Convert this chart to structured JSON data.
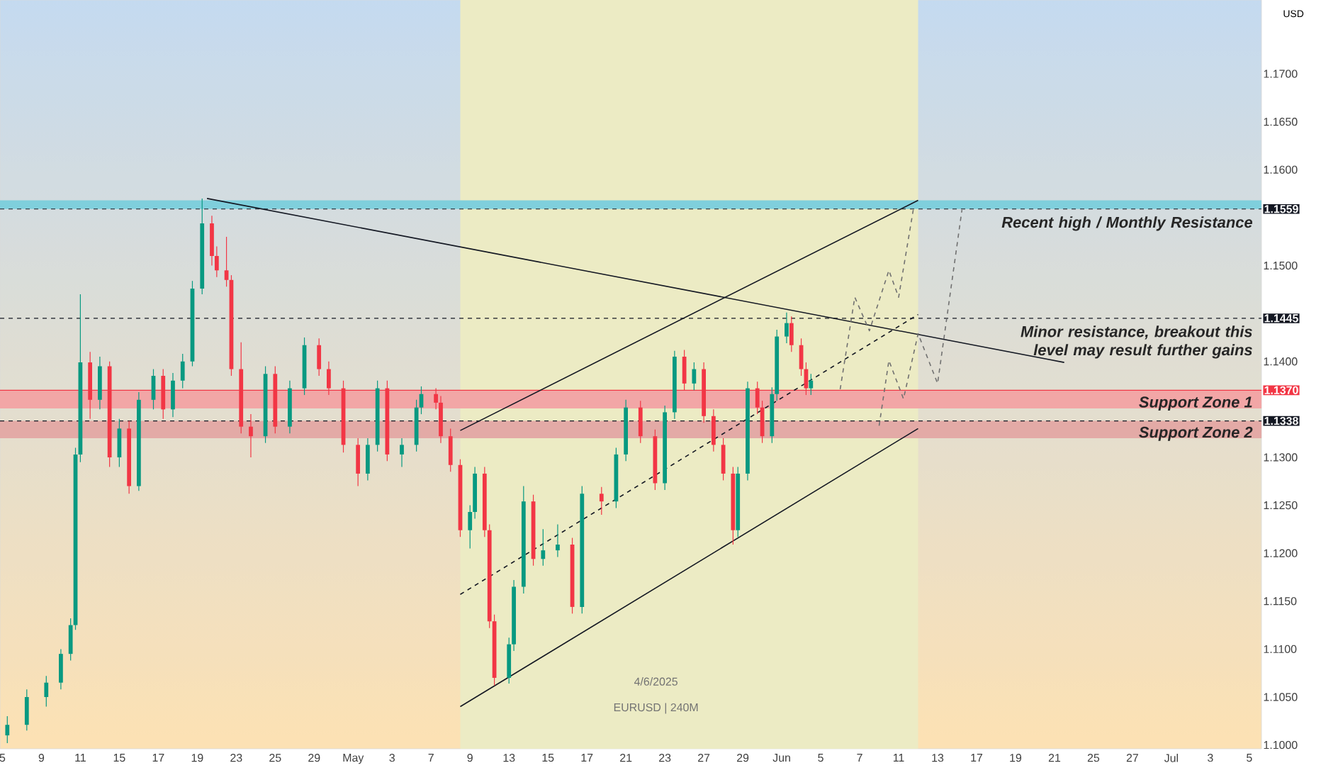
{
  "chart_data": {
    "type": "candlestick",
    "ylabel": "USD",
    "annotations": [
      "4/6/2025",
      "EURUSD | 240M"
    ],
    "categories": [
      "5",
      null,
      null,
      null,
      null,
      null,
      null,
      null,
      "9",
      null,
      null,
      null,
      null,
      null,
      null,
      null,
      "11",
      null,
      null,
      null,
      null,
      null,
      null,
      null,
      "15",
      null,
      null,
      null,
      null,
      null,
      null,
      null,
      "17",
      null,
      null,
      null,
      null,
      null,
      null,
      null,
      "19",
      null,
      null,
      null,
      null,
      null,
      null,
      null,
      "23",
      null,
      null,
      null,
      null,
      null,
      null,
      null,
      "25",
      null,
      null,
      null,
      null,
      null,
      null,
      null,
      "29",
      null,
      null,
      null,
      null,
      null,
      null,
      null,
      "May",
      null,
      null,
      null,
      null,
      null,
      null,
      null,
      "3",
      null,
      null,
      null,
      null,
      null,
      null,
      null,
      "7",
      null,
      null,
      null,
      null,
      null,
      null,
      null,
      "9",
      null,
      null,
      null,
      null,
      null,
      null,
      null,
      "13",
      null,
      null,
      null,
      null,
      null,
      null,
      null,
      "15",
      null,
      null,
      null,
      null,
      null,
      null,
      null,
      "17",
      null,
      null,
      null,
      null,
      null,
      null,
      null,
      "21",
      null,
      null,
      null,
      null,
      null,
      null,
      null,
      "23",
      null,
      null,
      null,
      null,
      null,
      null,
      null,
      "27",
      null,
      null,
      null,
      null,
      null,
      null,
      null,
      "29",
      null,
      null,
      null,
      null,
      null,
      null,
      null,
      "Jun",
      null,
      null,
      null,
      null,
      null,
      null,
      null,
      "5",
      null,
      null,
      null,
      null,
      null,
      null,
      null,
      "7",
      null,
      null,
      null,
      null,
      null,
      null,
      null,
      "11",
      null,
      null,
      null,
      null,
      null,
      null,
      null,
      "13",
      null,
      null,
      null,
      null,
      null,
      null,
      null,
      "17",
      null,
      null,
      null,
      null,
      null,
      null,
      null,
      "19",
      null,
      null,
      null,
      null,
      null,
      null,
      null,
      "21",
      null,
      null,
      null,
      null,
      null,
      null,
      null,
      "25",
      null,
      null,
      null,
      null,
      null,
      null,
      null,
      "27",
      null,
      null,
      null,
      null,
      null,
      null,
      null,
      "Jul",
      null,
      null,
      null,
      null,
      null,
      null,
      null,
      "3",
      null,
      null,
      null,
      null,
      null,
      null,
      null,
      "5",
      null,
      null
    ],
    "ohlc": [
      null,
      [
        1.101,
        1.103,
        1.1002,
        1.1021
      ],
      null,
      null,
      null,
      [
        1.1021,
        1.1058,
        1.1015,
        1.105
      ],
      null,
      null,
      null,
      [
        1.105,
        1.1072,
        1.104,
        1.1065
      ],
      null,
      null,
      [
        1.1065,
        1.11,
        1.1058,
        1.1095
      ],
      null,
      [
        1.1095,
        1.1132,
        1.1088,
        1.1125
      ],
      [
        1.1125,
        1.131,
        1.112,
        1.1303
      ],
      [
        1.1303,
        1.147,
        1.1295,
        1.1399
      ],
      null,
      [
        1.1399,
        1.141,
        1.134,
        1.136
      ],
      null,
      [
        1.136,
        1.1405,
        1.135,
        1.1395
      ],
      null,
      [
        1.1395,
        1.14,
        1.129,
        1.13
      ],
      null,
      [
        1.13,
        1.134,
        1.129,
        1.133
      ],
      null,
      [
        1.133,
        1.1338,
        1.1262,
        1.127
      ],
      null,
      [
        1.127,
        1.1368,
        1.1265,
        1.136
      ],
      null,
      null,
      [
        1.136,
        1.1392,
        1.135,
        1.1385
      ],
      null,
      [
        1.1385,
        1.1392,
        1.134,
        1.135
      ],
      null,
      [
        1.135,
        1.1388,
        1.1342,
        1.138
      ],
      null,
      [
        1.138,
        1.1408,
        1.1372,
        1.14
      ],
      null,
      [
        1.14,
        1.1484,
        1.1395,
        1.1476
      ],
      null,
      [
        1.1476,
        1.157,
        1.147,
        1.1544
      ],
      null,
      [
        1.1544,
        1.1552,
        1.15,
        1.151
      ],
      [
        1.151,
        1.152,
        1.1488,
        1.1495
      ],
      null,
      [
        1.1495,
        1.153,
        1.1478,
        1.1485
      ],
      [
        1.1485,
        1.149,
        1.1385,
        1.1392
      ],
      null,
      [
        1.1392,
        1.142,
        1.1325,
        1.1332
      ],
      null,
      [
        1.1332,
        1.1345,
        1.13,
        1.1322
      ],
      null,
      null,
      [
        1.1322,
        1.1395,
        1.1315,
        1.1387
      ],
      null,
      [
        1.1387,
        1.1395,
        1.1325,
        1.1332
      ],
      null,
      null,
      [
        1.1332,
        1.138,
        1.1325,
        1.1372
      ],
      null,
      null,
      [
        1.1372,
        1.1425,
        1.1365,
        1.1417
      ],
      null,
      null,
      [
        1.1417,
        1.1424,
        1.1385,
        1.1392
      ],
      null,
      [
        1.1392,
        1.14,
        1.1365,
        1.1372
      ],
      null,
      null,
      [
        1.1372,
        1.138,
        1.1305,
        1.1313
      ],
      null,
      null,
      [
        1.1313,
        1.132,
        1.127,
        1.1283
      ],
      null,
      [
        1.1283,
        1.132,
        1.1276,
        1.1313
      ],
      null,
      [
        1.1313,
        1.138,
        1.1306,
        1.1372
      ],
      null,
      [
        1.1372,
        1.138,
        1.1296,
        1.1303
      ],
      null,
      null,
      [
        1.1303,
        1.132,
        1.129,
        1.1313
      ],
      null,
      null,
      [
        1.1313,
        1.136,
        1.1306,
        1.1352
      ],
      [
        1.1352,
        1.1374,
        1.1345,
        1.1366
      ],
      null,
      null,
      [
        1.1366,
        1.1372,
        1.135,
        1.1357
      ],
      [
        1.1357,
        1.1364,
        1.1315,
        1.1322
      ],
      null,
      [
        1.1322,
        1.133,
        1.1285,
        1.1292
      ],
      null,
      [
        1.1292,
        1.1298,
        1.1217,
        1.1224
      ],
      null,
      [
        1.1224,
        1.125,
        1.1205,
        1.1243
      ],
      [
        1.1243,
        1.129,
        1.1236,
        1.1283
      ],
      null,
      [
        1.1283,
        1.129,
        1.1217,
        1.1224
      ],
      [
        1.1224,
        1.123,
        1.1122,
        1.1129
      ],
      [
        1.1129,
        1.1136,
        1.1062,
        1.107
      ],
      null,
      null,
      [
        1.107,
        1.1112,
        1.1064,
        1.1105
      ],
      [
        1.1105,
        1.1172,
        1.1098,
        1.1165
      ],
      null,
      [
        1.1165,
        1.127,
        1.1158,
        1.1254
      ],
      null,
      [
        1.1254,
        1.1261,
        1.1187,
        1.1194
      ],
      null,
      [
        1.1194,
        1.1225,
        1.1187,
        1.1203
      ],
      null,
      null,
      [
        1.1203,
        1.123,
        1.1196,
        1.1209
      ],
      null,
      null,
      [
        1.1209,
        1.1216,
        1.1137,
        1.1144
      ],
      null,
      [
        1.1144,
        1.127,
        1.1137,
        1.1262
      ],
      null,
      null,
      null,
      [
        1.1262,
        1.1269,
        1.124,
        1.1254
      ],
      null,
      null,
      [
        1.1254,
        1.131,
        1.1247,
        1.1303
      ],
      null,
      [
        1.1303,
        1.136,
        1.1296,
        1.1352
      ],
      null,
      null,
      [
        1.1352,
        1.1359,
        1.1315,
        1.1322
      ],
      null,
      null,
      [
        1.1322,
        1.1329,
        1.1266,
        1.1273
      ],
      null,
      [
        1.1273,
        1.1354,
        1.1266,
        1.1347
      ],
      null,
      [
        1.1347,
        1.1411,
        1.134,
        1.1405
      ],
      null,
      [
        1.1405,
        1.1412,
        1.137,
        1.1377
      ],
      null,
      [
        1.1377,
        1.1399,
        1.137,
        1.1392
      ],
      null,
      [
        1.1392,
        1.1399,
        1.1336,
        1.1343
      ],
      null,
      [
        1.1343,
        1.135,
        1.1306,
        1.1313
      ],
      null,
      [
        1.1313,
        1.132,
        1.1276,
        1.1283
      ],
      null,
      [
        1.1283,
        1.129,
        1.1209,
        1.1224
      ],
      [
        1.1224,
        1.129,
        1.1217,
        1.1283
      ],
      null,
      [
        1.1283,
        1.1379,
        1.1276,
        1.1372
      ],
      null,
      [
        1.1372,
        1.1379,
        1.1345,
        1.1352
      ],
      [
        1.1352,
        1.1359,
        1.1315,
        1.1322
      ],
      null,
      [
        1.1322,
        1.1373,
        1.1315,
        1.1366
      ],
      [
        1.1366,
        1.1433,
        1.1359,
        1.1426
      ],
      null,
      [
        1.1426,
        1.1451,
        1.1419,
        1.144
      ],
      [
        1.144,
        1.1447,
        1.141,
        1.1417
      ],
      null,
      [
        1.1417,
        1.1424,
        1.1385,
        1.1392
      ],
      [
        1.1392,
        1.1399,
        1.1365,
        1.1372
      ],
      [
        1.1372,
        1.1387,
        1.1365,
        1.138
      ],
      null,
      null,
      null,
      null,
      null,
      null,
      null,
      null,
      null,
      null,
      null,
      null,
      null,
      null,
      null,
      null,
      null,
      null,
      null,
      null,
      null,
      null,
      null,
      null,
      null,
      null,
      null,
      null,
      null,
      null,
      null,
      null,
      null,
      null,
      null,
      null,
      null,
      null,
      null,
      null,
      null,
      null,
      null,
      null,
      null,
      null,
      null,
      null,
      null,
      null,
      null,
      null,
      null,
      null,
      null,
      null,
      null,
      null,
      null,
      null,
      null,
      null,
      null,
      null,
      null,
      null,
      null,
      null,
      null,
      null,
      null,
      null,
      null,
      null,
      null,
      null,
      null,
      null,
      null,
      null,
      null,
      null,
      null,
      null,
      null,
      null,
      null,
      null,
      null,
      null,
      null,
      null
    ],
    "series": [
      {
        "type": "line",
        "color": "#131722",
        "line_style": "solid",
        "values": [
          null,
          null,
          null,
          null,
          null,
          null,
          null,
          null,
          null,
          null,
          null,
          null,
          null,
          null,
          null,
          null,
          null,
          null,
          null,
          null,
          null,
          null,
          null,
          null,
          null,
          null,
          null,
          null,
          null,
          null,
          null,
          null,
          null,
          null,
          null,
          null,
          null,
          null,
          null,
          null,
          null,
          null,
          1.157,
          null,
          null,
          null,
          null,
          null,
          null,
          null,
          null,
          null,
          null,
          null,
          null,
          null,
          null,
          null,
          null,
          null,
          null,
          null,
          null,
          null,
          null,
          null,
          null,
          null,
          null,
          null,
          null,
          null,
          null,
          null,
          null,
          null,
          null,
          null,
          null,
          null,
          null,
          null,
          null,
          null,
          null,
          null,
          null,
          null,
          null,
          null,
          null,
          null,
          null,
          null,
          null,
          null,
          null,
          null,
          null,
          null,
          null,
          null,
          null,
          null,
          null,
          null,
          null,
          null,
          null,
          null,
          null,
          null,
          null,
          null,
          null,
          null,
          null,
          null,
          null,
          null,
          null,
          null,
          null,
          null,
          null,
          null,
          null,
          null,
          null,
          null,
          null,
          null,
          null,
          null,
          null,
          null,
          null,
          null,
          null,
          null,
          null,
          null,
          null,
          null,
          null,
          null,
          null,
          null,
          null,
          null,
          null,
          null,
          null,
          null,
          null,
          null,
          null,
          null,
          null,
          null,
          null,
          null,
          null,
          null,
          null,
          null,
          null,
          null,
          null,
          null,
          null,
          null,
          null,
          null,
          null,
          null,
          null,
          null,
          null,
          null,
          null,
          null,
          null,
          null,
          null,
          null,
          null,
          null,
          null,
          null,
          null,
          null,
          null,
          null,
          null,
          null,
          null,
          null,
          null,
          null,
          null,
          null,
          null,
          null,
          null,
          null,
          null,
          null,
          null,
          null,
          null,
          null,
          null,
          null,
          null,
          null,
          null,
          null,
          1.1399,
          null,
          null,
          null,
          null,
          null,
          null,
          null,
          null,
          null,
          null,
          null,
          null,
          null,
          null,
          null,
          null,
          null,
          null,
          null,
          null,
          null,
          null,
          null,
          null,
          null,
          null,
          null,
          null,
          null,
          null,
          null,
          null,
          null,
          null,
          null,
          null,
          null,
          null,
          null,
          null
        ]
      },
      {
        "type": "line",
        "color": "#131722",
        "line_style": "solid",
        "values": [
          null,
          null,
          null,
          null,
          null,
          null,
          null,
          null,
          null,
          null,
          null,
          null,
          null,
          null,
          null,
          null,
          null,
          null,
          null,
          null,
          null,
          null,
          null,
          null,
          null,
          null,
          null,
          null,
          null,
          null,
          null,
          null,
          null,
          null,
          null,
          null,
          null,
          null,
          null,
          null,
          null,
          null,
          null,
          null,
          null,
          null,
          null,
          null,
          null,
          null,
          null,
          null,
          null,
          null,
          null,
          null,
          null,
          null,
          null,
          null,
          null,
          null,
          null,
          null,
          null,
          null,
          null,
          null,
          null,
          null,
          null,
          null,
          null,
          null,
          null,
          null,
          null,
          null,
          null,
          null,
          null,
          null,
          null,
          null,
          null,
          null,
          null,
          null,
          null,
          null,
          null,
          null,
          null,
          null,
          1.1328,
          null,
          null,
          null,
          null,
          null,
          null,
          null,
          null,
          null,
          null,
          null,
          null,
          null,
          null,
          null,
          null,
          null,
          null,
          null,
          null,
          null,
          null,
          null,
          null,
          null,
          null,
          null,
          null,
          null,
          null,
          null,
          null,
          null,
          null,
          null,
          null,
          null,
          null,
          null,
          null,
          null,
          null,
          null,
          null,
          null,
          null,
          null,
          null,
          null,
          null,
          null,
          null,
          null,
          null,
          null,
          null,
          null,
          null,
          null,
          null,
          null,
          null,
          null,
          null,
          null,
          null,
          null,
          null,
          null,
          null,
          null,
          null,
          null,
          null,
          null,
          null,
          null,
          null,
          null,
          null,
          null,
          null,
          null,
          null,
          null,
          null,
          null,
          null,
          null,
          null,
          null,
          null,
          null,
          1.1568,
          null,
          null,
          null,
          null,
          null,
          null,
          null,
          null,
          null,
          null,
          null,
          null,
          null,
          null,
          null,
          null,
          null,
          null,
          null,
          null,
          null,
          null,
          null,
          null,
          null,
          null,
          null,
          null,
          null,
          null,
          null,
          null,
          null,
          null,
          null,
          null,
          null,
          null,
          null,
          null,
          null,
          null,
          null,
          null,
          null,
          null,
          null,
          null,
          null,
          null,
          null,
          null,
          null,
          null,
          null,
          null,
          null,
          null,
          null,
          null,
          null,
          null,
          null,
          null,
          null,
          null,
          null,
          null,
          null,
          null
        ]
      },
      {
        "type": "line",
        "color": "#131722",
        "line_style": "solid",
        "values": [
          null,
          null,
          null,
          null,
          null,
          null,
          null,
          null,
          null,
          null,
          null,
          null,
          null,
          null,
          null,
          null,
          null,
          null,
          null,
          null,
          null,
          null,
          null,
          null,
          null,
          null,
          null,
          null,
          null,
          null,
          null,
          null,
          null,
          null,
          null,
          null,
          null,
          null,
          null,
          null,
          null,
          null,
          null,
          null,
          null,
          null,
          null,
          null,
          null,
          null,
          null,
          null,
          null,
          null,
          null,
          null,
          null,
          null,
          null,
          null,
          null,
          null,
          null,
          null,
          null,
          null,
          null,
          null,
          null,
          null,
          null,
          null,
          null,
          null,
          null,
          null,
          null,
          null,
          null,
          null,
          null,
          null,
          null,
          null,
          null,
          null,
          null,
          null,
          null,
          null,
          null,
          null,
          null,
          null,
          1.104,
          null,
          null,
          null,
          null,
          null,
          null,
          null,
          null,
          null,
          null,
          null,
          null,
          null,
          null,
          null,
          null,
          null,
          null,
          null,
          null,
          null,
          null,
          null,
          null,
          null,
          null,
          null,
          null,
          null,
          null,
          null,
          null,
          null,
          null,
          null,
          null,
          null,
          null,
          null,
          null,
          null,
          null,
          null,
          null,
          null,
          null,
          null,
          null,
          null,
          null,
          null,
          null,
          null,
          null,
          null,
          null,
          null,
          null,
          null,
          null,
          null,
          null,
          null,
          null,
          null,
          null,
          null,
          null,
          null,
          null,
          null,
          null,
          null,
          null,
          null,
          null,
          null,
          null,
          null,
          null,
          null,
          null,
          null,
          null,
          null,
          null,
          null,
          null,
          null,
          null,
          null,
          null,
          null,
          1.133,
          null,
          null,
          null,
          null,
          null,
          null,
          null,
          null,
          null,
          null,
          null,
          null,
          null,
          null,
          null,
          null,
          null,
          null,
          null,
          null,
          null,
          null,
          null,
          null,
          null,
          null,
          null,
          null,
          null,
          null,
          null,
          null,
          null,
          null,
          null,
          null,
          null,
          null,
          null,
          null,
          null,
          null,
          null,
          null,
          null,
          null,
          null,
          null,
          null,
          null,
          null,
          null,
          null,
          null,
          null,
          null,
          null,
          null,
          null,
          null,
          null,
          null,
          null,
          null,
          null,
          null,
          null,
          null,
          null,
          null
        ]
      },
      {
        "type": "line",
        "color": "#131722",
        "line_style": "dashed",
        "values": [
          null,
          null,
          null,
          null,
          null,
          null,
          null,
          null,
          null,
          null,
          null,
          null,
          null,
          null,
          null,
          null,
          null,
          null,
          null,
          null,
          null,
          null,
          null,
          null,
          null,
          null,
          null,
          null,
          null,
          null,
          null,
          null,
          null,
          null,
          null,
          null,
          null,
          null,
          null,
          null,
          null,
          null,
          null,
          null,
          null,
          null,
          null,
          null,
          null,
          null,
          null,
          null,
          null,
          null,
          null,
          null,
          null,
          null,
          null,
          null,
          null,
          null,
          null,
          null,
          null,
          null,
          null,
          null,
          null,
          null,
          null,
          null,
          null,
          null,
          null,
          null,
          null,
          null,
          null,
          null,
          null,
          null,
          null,
          null,
          null,
          null,
          null,
          null,
          null,
          null,
          null,
          null,
          null,
          null,
          1.1157,
          null,
          null,
          null,
          null,
          null,
          null,
          null,
          null,
          null,
          null,
          null,
          null,
          null,
          null,
          null,
          null,
          null,
          null,
          null,
          null,
          null,
          null,
          null,
          null,
          null,
          null,
          null,
          null,
          null,
          null,
          null,
          null,
          null,
          null,
          null,
          null,
          null,
          null,
          null,
          null,
          null,
          null,
          null,
          null,
          null,
          null,
          null,
          null,
          null,
          null,
          null,
          null,
          null,
          null,
          null,
          null,
          null,
          null,
          null,
          null,
          null,
          null,
          null,
          null,
          null,
          null,
          null,
          null,
          null,
          null,
          null,
          null,
          null,
          null,
          null,
          null,
          null,
          null,
          null,
          null,
          null,
          null,
          null,
          null,
          null,
          null,
          null,
          null,
          null,
          null,
          null,
          null,
          null,
          1.1449,
          null,
          null,
          null,
          null,
          null,
          null,
          null,
          null,
          null,
          null,
          null,
          null,
          null,
          null,
          null,
          null,
          null,
          null,
          null,
          null,
          null,
          null,
          null,
          null,
          null,
          null,
          null,
          null,
          null,
          null,
          null,
          null,
          null,
          null,
          null,
          null,
          null,
          null,
          null,
          null,
          null,
          null,
          null,
          null,
          null,
          null,
          null,
          null,
          null,
          null,
          null,
          null,
          null,
          null,
          null,
          null,
          null,
          null,
          null,
          null,
          null,
          null,
          null,
          null,
          null,
          null,
          null,
          null,
          null,
          null
        ]
      },
      {
        "type": "line",
        "color": "#707070",
        "line_style": "dashed",
        "values": [
          null,
          null,
          null,
          null,
          null,
          null,
          null,
          null,
          null,
          null,
          null,
          null,
          null,
          null,
          null,
          null,
          null,
          null,
          null,
          null,
          null,
          null,
          null,
          null,
          null,
          null,
          null,
          null,
          null,
          null,
          null,
          null,
          null,
          null,
          null,
          null,
          null,
          null,
          null,
          null,
          null,
          null,
          null,
          null,
          null,
          null,
          null,
          null,
          null,
          null,
          null,
          null,
          null,
          null,
          null,
          null,
          null,
          null,
          null,
          null,
          null,
          null,
          null,
          null,
          null,
          null,
          null,
          null,
          null,
          null,
          null,
          null,
          null,
          null,
          null,
          null,
          null,
          null,
          null,
          null,
          null,
          null,
          null,
          null,
          null,
          null,
          null,
          null,
          null,
          null,
          null,
          null,
          null,
          null,
          null,
          null,
          null,
          null,
          null,
          null,
          null,
          null,
          null,
          null,
          null,
          null,
          null,
          null,
          null,
          null,
          null,
          null,
          null,
          null,
          null,
          null,
          null,
          null,
          null,
          null,
          null,
          null,
          null,
          null,
          null,
          null,
          null,
          null,
          null,
          null,
          null,
          null,
          null,
          null,
          null,
          null,
          null,
          null,
          null,
          null,
          null,
          null,
          null,
          null,
          null,
          null,
          null,
          null,
          null,
          null,
          null,
          null,
          null,
          null,
          null,
          null,
          null,
          null,
          null,
          null,
          null,
          null,
          null,
          null,
          null,
          null,
          null,
          null,
          null,
          null,
          null,
          null,
          1.1371,
          null,
          null,
          1.1467,
          null,
          null,
          1.1432,
          null,
          null,
          null,
          1.1495,
          null,
          1.1467,
          null,
          null,
          1.1558,
          null,
          null,
          null,
          null,
          null,
          null,
          null,
          null,
          null,
          null,
          null,
          null,
          null,
          null,
          null,
          null,
          null,
          null,
          null,
          null,
          null,
          null,
          null,
          null,
          null,
          null,
          null,
          null,
          null,
          null,
          null,
          null,
          null,
          null,
          null,
          null,
          null,
          null,
          null,
          null,
          null,
          null,
          null,
          null,
          null,
          null,
          null,
          null,
          null,
          null,
          null,
          null,
          null,
          null,
          null,
          null,
          null,
          null,
          null,
          null,
          null,
          null,
          null,
          null,
          null,
          null,
          null,
          null,
          null,
          null,
          null
        ]
      },
      {
        "type": "line",
        "color": "#707070",
        "line_style": "dashed",
        "values": [
          null,
          null,
          null,
          null,
          null,
          null,
          null,
          null,
          null,
          null,
          null,
          null,
          null,
          null,
          null,
          null,
          null,
          null,
          null,
          null,
          null,
          null,
          null,
          null,
          null,
          null,
          null,
          null,
          null,
          null,
          null,
          null,
          null,
          null,
          null,
          null,
          null,
          null,
          null,
          null,
          null,
          null,
          null,
          null,
          null,
          null,
          null,
          null,
          null,
          null,
          null,
          null,
          null,
          null,
          null,
          null,
          null,
          null,
          null,
          null,
          null,
          null,
          null,
          null,
          null,
          null,
          null,
          null,
          null,
          null,
          null,
          null,
          null,
          null,
          null,
          null,
          null,
          null,
          null,
          null,
          null,
          null,
          null,
          null,
          null,
          null,
          null,
          null,
          null,
          null,
          null,
          null,
          null,
          null,
          null,
          null,
          null,
          null,
          null,
          null,
          null,
          null,
          null,
          null,
          null,
          null,
          null,
          null,
          null,
          null,
          null,
          null,
          null,
          null,
          null,
          null,
          null,
          null,
          null,
          null,
          null,
          null,
          null,
          null,
          null,
          null,
          null,
          null,
          null,
          null,
          null,
          null,
          null,
          null,
          null,
          null,
          null,
          null,
          null,
          null,
          null,
          null,
          null,
          null,
          null,
          null,
          null,
          null,
          null,
          null,
          null,
          null,
          null,
          null,
          null,
          null,
          null,
          null,
          null,
          null,
          null,
          null,
          null,
          null,
          null,
          null,
          null,
          null,
          null,
          null,
          null,
          null,
          null,
          null,
          null,
          null,
          null,
          null,
          null,
          null,
          1.1333,
          null,
          1.1401,
          null,
          null,
          1.1361,
          null,
          null,
          1.1429,
          null,
          null,
          null,
          1.1377,
          null,
          null,
          null,
          null,
          1.1558,
          null,
          null,
          null,
          null,
          null,
          null,
          null,
          null,
          null,
          null,
          null,
          null,
          null,
          null,
          null,
          null,
          null,
          null,
          null,
          null,
          null,
          null,
          null,
          null,
          null,
          null,
          null,
          null,
          null,
          null,
          null,
          null,
          null,
          null,
          null,
          null,
          null,
          null,
          null,
          null,
          null,
          null,
          null,
          null,
          null,
          null,
          null,
          null,
          null,
          null,
          null,
          null,
          null,
          null,
          null,
          null,
          null,
          null,
          null,
          null,
          null
        ]
      }
    ],
    "ref_lines": [
      {
        "axis": "y",
        "value": 1.1559,
        "label": "Recent high / Monthly Resistance",
        "color": "#131722",
        "line_style": "dashed"
      },
      {
        "axis": "y",
        "value": 1.1445,
        "label": "Minor resistance, breakout this level may result further gains",
        "color": "#131722",
        "line_style": "dashed"
      },
      {
        "axis": "y",
        "value": 1.137,
        "color": "#f23645",
        "line_style": "solid"
      },
      {
        "axis": "y",
        "value": 1.1338,
        "color": "#131722",
        "line_style": "dashed"
      }
    ],
    "bands": [
      {
        "axis": "y",
        "from": 1.1559,
        "to": 1.1568,
        "color": "#7fcfdc"
      },
      {
        "axis": "y",
        "from": 1.1351,
        "to": 1.137,
        "label": "Support Zone 1",
        "color": "#f2a6a6"
      },
      {
        "axis": "y",
        "from": 1.132,
        "to": 1.1338,
        "label": "Support Zone 2",
        "color": "#e3aaa6"
      }
    ],
    "ylim": [
      1.0996,
      1.1777
    ],
    "yticks": [
      {
        "value": 1.1,
        "label": "1.1000"
      },
      {
        "value": 1.105,
        "label": "1.1050"
      },
      {
        "value": 1.11,
        "label": "1.1100"
      },
      {
        "value": 1.115,
        "label": "1.1150"
      },
      {
        "value": 1.12,
        "label": "1.1200"
      },
      {
        "value": 1.125,
        "label": "1.1250"
      },
      {
        "value": 1.13,
        "label": "1.1300"
      },
      {
        "value": 1.1338,
        "label": "1.1338"
      },
      {
        "value": 1.137,
        "label": "1.1370"
      },
      {
        "value": 1.14,
        "label": "1.1400"
      },
      {
        "value": 1.1445,
        "label": "1.1445"
      },
      {
        "value": 1.15,
        "label": "1.1500"
      },
      {
        "value": 1.1559,
        "label": "1.1559"
      },
      {
        "value": 1.16,
        "label": "1.1600"
      },
      {
        "value": 1.165,
        "label": "1.1650"
      },
      {
        "value": 1.17,
        "label": "1.1700"
      }
    ]
  }
}
